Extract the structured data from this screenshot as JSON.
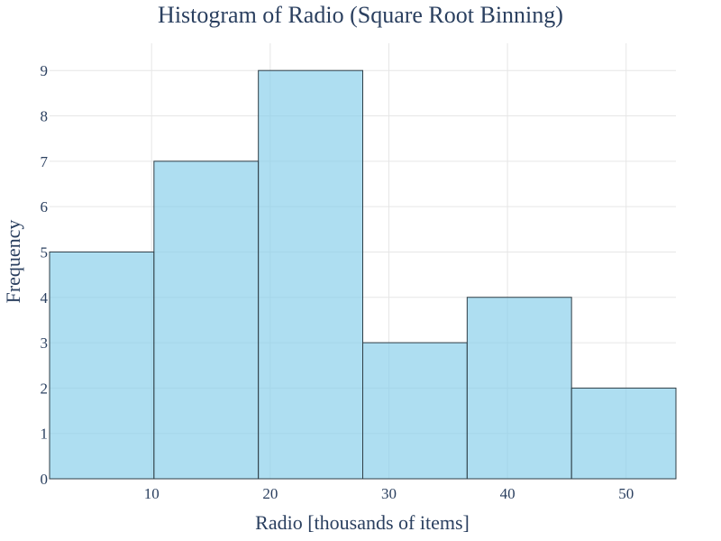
{
  "chart_data": {
    "type": "bar",
    "title": "Histogram of Radio (Square Root Binning)",
    "xlabel": "Radio [thousands of items]",
    "ylabel": "Frequency",
    "bins": [
      {
        "start": 1.4,
        "end": 10.2,
        "count": 5
      },
      {
        "start": 10.2,
        "end": 19.0,
        "count": 7
      },
      {
        "start": 19.0,
        "end": 27.8,
        "count": 9
      },
      {
        "start": 27.8,
        "end": 36.6,
        "count": 3
      },
      {
        "start": 36.6,
        "end": 45.4,
        "count": 4
      },
      {
        "start": 45.4,
        "end": 54.2,
        "count": 2
      }
    ],
    "xlim": [
      1.4,
      54.2
    ],
    "ylim": [
      0,
      9.6
    ],
    "x_ticks": [
      10,
      20,
      30,
      40,
      50
    ],
    "y_ticks": [
      0,
      1,
      2,
      3,
      4,
      5,
      6,
      7,
      8,
      9
    ],
    "grid": true,
    "bar_color": "#87ceeb",
    "bar_outline_color": "#2f3e46",
    "text_color": "#2a3f5f"
  }
}
